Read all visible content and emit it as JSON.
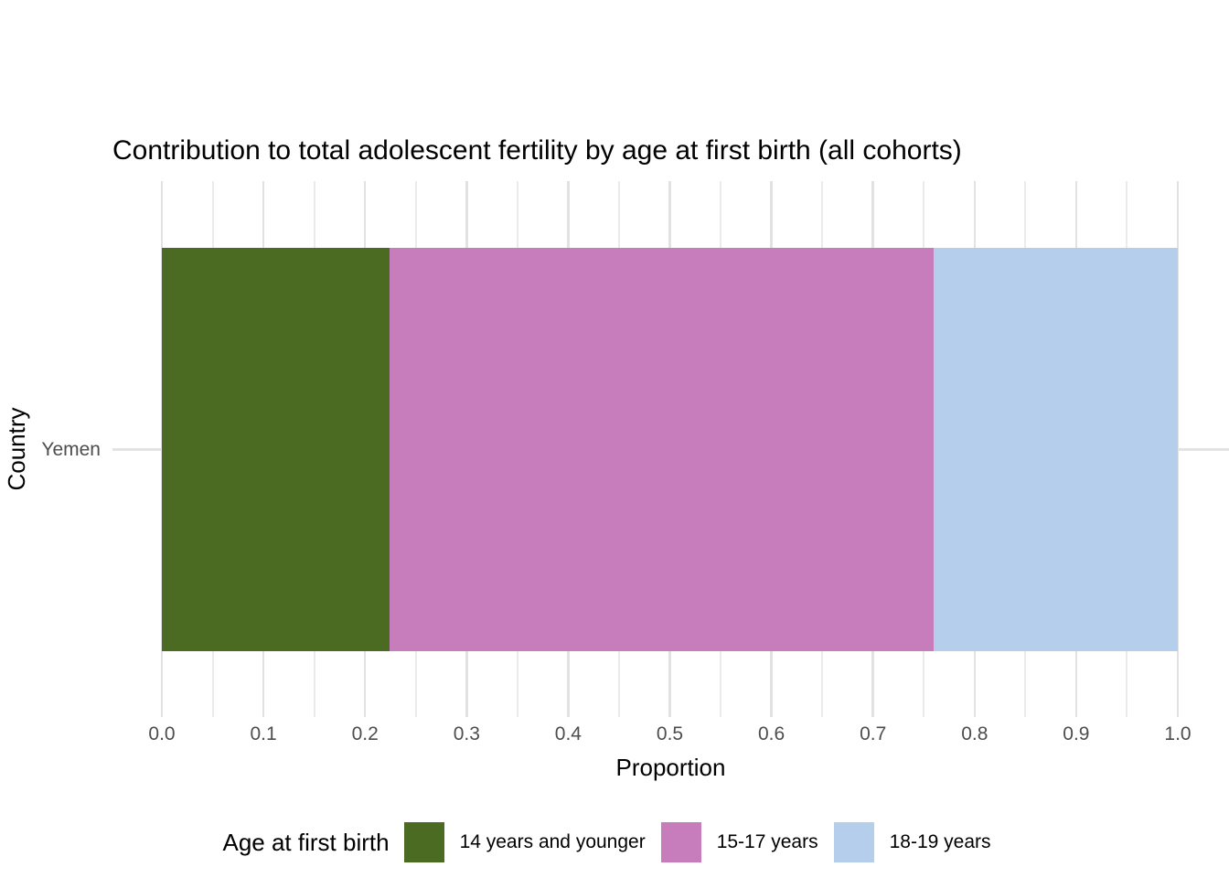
{
  "title": "Contribution to total adolescent fertility by age at first birth (all cohorts)",
  "chart_data": {
    "type": "bar",
    "orientation": "horizontal",
    "stacked": true,
    "title": "Contribution to total adolescent fertility by age at first birth (all cohorts)",
    "xlabel": "Proportion",
    "ylabel": "Country",
    "categories": [
      "Yemen"
    ],
    "series": [
      {
        "name": "14 years and younger",
        "values": [
          0.224
        ],
        "color": "#4C6B22"
      },
      {
        "name": "15-17 years",
        "values": [
          0.536
        ],
        "color": "#C77CBC"
      },
      {
        "name": "18-19 years",
        "values": [
          0.24
        ],
        "color": "#B5CEEC"
      }
    ],
    "xlim": [
      0,
      1
    ],
    "xticks": [
      0.0,
      0.1,
      0.2,
      0.3,
      0.4,
      0.5,
      0.6,
      0.7,
      0.8,
      0.9,
      1.0
    ],
    "xtick_labels": [
      "0.0",
      "0.1",
      "0.2",
      "0.3",
      "0.4",
      "0.5",
      "0.6",
      "0.7",
      "0.8",
      "0.9",
      "1.0"
    ],
    "grid": true,
    "legend_title": "Age at first birth",
    "legend_position": "bottom"
  },
  "colors": {
    "background": "#FFFFFF",
    "grid_major": "#E2E2E2",
    "grid_minor": "#EBEBEB",
    "tick_text": "#4D4D4D",
    "text": "#000000"
  }
}
